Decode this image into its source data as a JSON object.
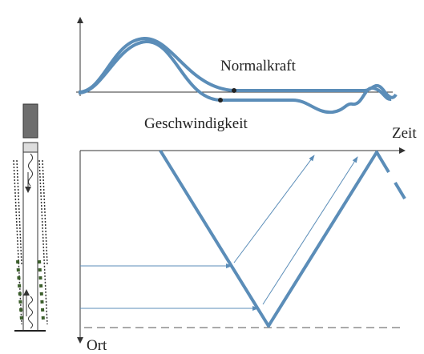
{
  "labels": {
    "normal_force": "Normalkraft",
    "velocity": "Geschwindigkeit",
    "time": "Zeit",
    "position": "Ort"
  }
}
